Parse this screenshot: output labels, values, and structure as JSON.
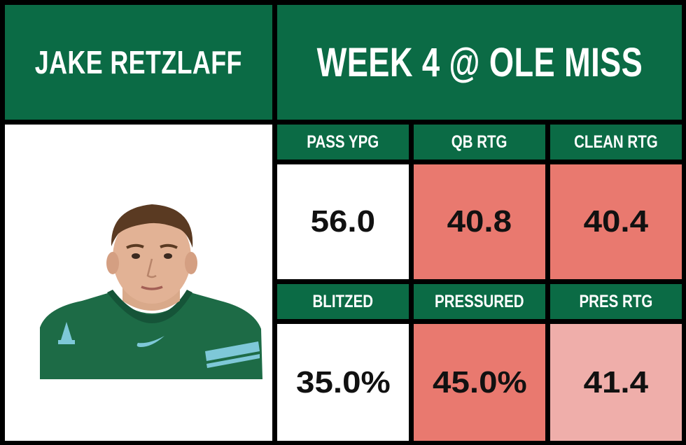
{
  "header": {
    "player_name": "JAKE RETZLAFF",
    "game_title": "WEEK 4 @ OLE MISS"
  },
  "colors": {
    "brand_green": "#0b6b45",
    "neutral_cell": "#ffffff",
    "poor_cell": "#e9796f",
    "below_avg_cell": "#efaeaa",
    "jersey_green": "#1d6b46",
    "jersey_accent": "#7ec8d8"
  },
  "stats": [
    {
      "label": "PASS YPG",
      "value": "56.0",
      "rating": "neutral"
    },
    {
      "label": "QB RTG",
      "value": "40.8",
      "rating": "poor"
    },
    {
      "label": "CLEAN RTG",
      "value": "40.4",
      "rating": "poor"
    },
    {
      "label": "BLITZED",
      "value": "35.0%",
      "rating": "neutral"
    },
    {
      "label": "PRESSURED",
      "value": "45.0%",
      "rating": "poor"
    },
    {
      "label": "PRES RTG",
      "value": "41.4",
      "rating": "below_avg"
    }
  ],
  "icons": {
    "player_photo": "player-headshot",
    "jersey_logo": "letter-a-logo",
    "jersey_swoosh": "swoosh-logo"
  },
  "jersey_letter": "A"
}
